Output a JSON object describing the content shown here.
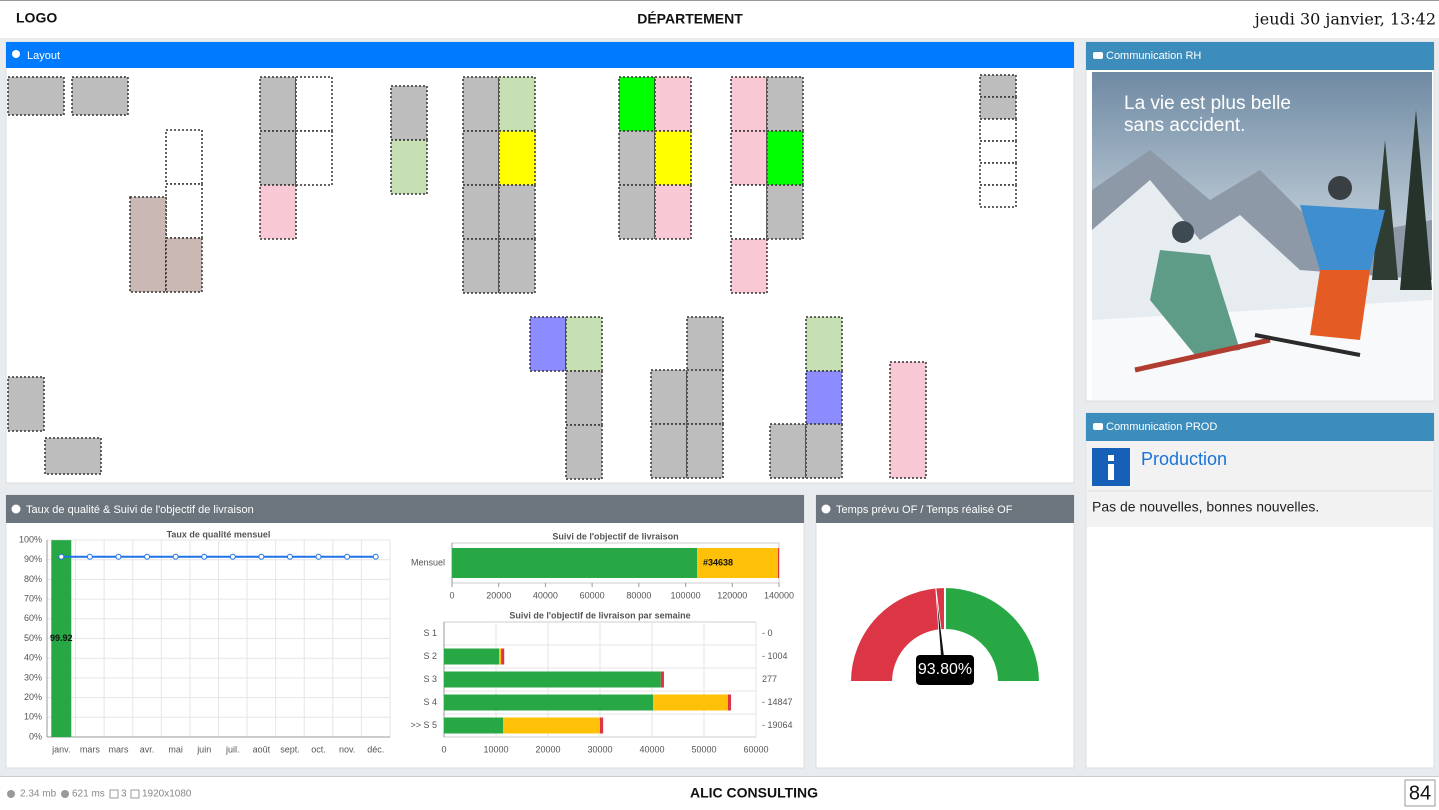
{
  "header": {
    "logo": "LOGO",
    "title": "DÉPARTEMENT",
    "datetime": "jeudi 30 janvier, 13:42"
  },
  "panels": {
    "layout": {
      "title": "Layout"
    },
    "rh": {
      "title": "Communication RH",
      "image_text": [
        "La vie est plus belle",
        "sans accident."
      ]
    },
    "prod": {
      "title": "Communication PROD",
      "heading": "Production",
      "message": "Pas de nouvelles, bonnes nouvelles."
    },
    "quality": {
      "title": "Taux de qualité & Suivi de l'objectif de livraison"
    },
    "gauge": {
      "title": "Temps prévu OF / Temps réalisé OF"
    }
  },
  "chart_data": [
    {
      "type": "combo",
      "title": "Taux de qualité mensuel",
      "categories": [
        "janv.",
        "mars",
        "mars",
        "avr.",
        "mai",
        "juin",
        "juil.",
        "août",
        "sept.",
        "oct.",
        "nov.",
        "déc."
      ],
      "series": [
        {
          "type": "bar",
          "color": "#28a745",
          "values": [
            99.92,
            null,
            null,
            null,
            null,
            null,
            null,
            null,
            null,
            null,
            null,
            null
          ]
        },
        {
          "type": "line",
          "color": "#1e73e8",
          "values": [
            91.5,
            91.5,
            91.5,
            91.5,
            91.5,
            91.5,
            91.5,
            91.5,
            91.5,
            91.5,
            91.5,
            91.5
          ]
        }
      ],
      "ylim": [
        0,
        100
      ],
      "yticks": [
        {
          "value": 0,
          "label": "0%"
        },
        {
          "value": 10,
          "label": "10%"
        },
        {
          "value": 20,
          "label": "20%"
        },
        {
          "value": 30,
          "label": "30%"
        },
        {
          "value": 40,
          "label": "40%"
        },
        {
          "value": 50,
          "label": "50%"
        },
        {
          "value": 60,
          "label": "60%"
        },
        {
          "value": 70,
          "label": "70%"
        },
        {
          "value": 80,
          "label": "80%"
        },
        {
          "value": 90,
          "label": "90%"
        },
        {
          "value": 100,
          "label": "100%"
        }
      ],
      "grid": true
    },
    {
      "type": "hbar",
      "stacked": true,
      "title": "Suivi de l'objectif de livraison",
      "categories": [
        "Mensuel"
      ],
      "series": [
        {
          "color": "#28a745",
          "values": [
            104900
          ]
        },
        {
          "color": "#ffc107",
          "values": [
            34638
          ],
          "value_labels": [
            "#34638"
          ]
        },
        {
          "color": "#dc3545",
          "values": [
            500
          ]
        }
      ],
      "xlim": [
        0,
        140000
      ],
      "xticks": [
        0,
        20000,
        40000,
        60000,
        80000,
        100000,
        120000,
        140000
      ],
      "grid": false
    },
    {
      "type": "hbar",
      "stacked": true,
      "title": "Suivi de l'objectif de livraison par semaine",
      "categories": [
        "S 1",
        "S 2",
        "S 3",
        "S 4",
        ">> S 5"
      ],
      "series": [
        {
          "color": "#28a745",
          "values": [
            0,
            10580,
            41700,
            40200,
            11350
          ]
        },
        {
          "color": "#ffc107",
          "values": [
            0,
            400,
            0,
            14400,
            18650
          ]
        },
        {
          "color": "#dc3545",
          "values": [
            0,
            600,
            600,
            600,
            600
          ]
        }
      ],
      "right_labels": [
        "- 0",
        "- 1004",
        "277",
        "- 14847",
        "- 19064"
      ],
      "xlim": [
        0,
        60000
      ],
      "xticks": [
        0,
        10000,
        20000,
        30000,
        40000,
        50000,
        60000
      ],
      "grid": true
    },
    {
      "type": "gauge",
      "value": 93.8,
      "value_label": "93.80%",
      "range": [
        0,
        200
      ],
      "bands": [
        {
          "from": 0,
          "to": 100,
          "color": "#dc3545"
        },
        {
          "from": 100,
          "to": 200,
          "color": "#28a745"
        }
      ]
    }
  ],
  "footer": {
    "memory": "2.34 mb",
    "time": "621 ms",
    "screens": "3",
    "resolution": "1920x1080",
    "company": "ALIC CONSULTING",
    "counter": "84"
  }
}
